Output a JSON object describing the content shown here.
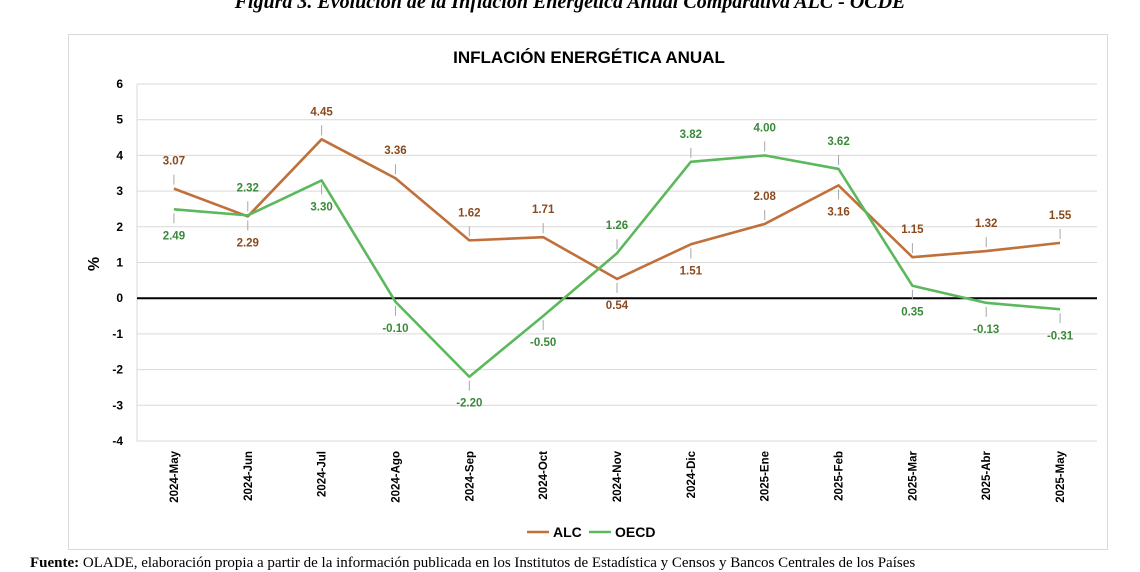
{
  "figure": {
    "title": "Figura 3. Evolución de la Inflación Energética Anual Comparativa ALC - OCDE",
    "source_label": "Fuente:",
    "source_text": "OLADE, elaboración propia a partir de la información publicada en los Institutos de Estadística y Censos y Bancos Centrales de los Países"
  },
  "chart_data": {
    "type": "line",
    "title": "INFLACIÓN ENERGÉTICA ANUAL",
    "xlabel": "",
    "ylabel": "%",
    "ylim": [
      -4,
      6
    ],
    "yticks": [
      "-4",
      "-3",
      "-2",
      "-1",
      "0",
      "1",
      "2",
      "3",
      "4",
      "5",
      "6"
    ],
    "grid": true,
    "legend": "bottom-center",
    "categories": [
      "2024-May",
      "2024-Jun",
      "2024-Jul",
      "2024-Ago",
      "2024-Sep",
      "2024-Oct",
      "2024-Nov",
      "2024-Dic",
      "2025-Ene",
      "2025-Feb",
      "2025-Mar",
      "2025-Abr",
      "2025-May"
    ],
    "series": [
      {
        "name": "ALC",
        "color": "#c0703a",
        "values": [
          3.07,
          2.29,
          4.45,
          3.36,
          1.62,
          1.71,
          0.54,
          1.51,
          2.08,
          3.16,
          1.15,
          1.32,
          1.55
        ],
        "labels": [
          "3.07",
          "2.29",
          "4.45",
          "3.36",
          "1.62",
          "1.71",
          "0.54",
          "1.51",
          "2.08",
          "3.16",
          "1.15",
          "1.32",
          "1.55"
        ]
      },
      {
        "name": "OECD",
        "color": "#5cb85c",
        "values": [
          2.49,
          2.32,
          3.3,
          -0.1,
          -2.2,
          -0.5,
          1.26,
          3.82,
          4.0,
          3.62,
          0.35,
          -0.13,
          -0.31
        ],
        "labels": [
          "2.49",
          "2.32",
          "3.30",
          "-0.10",
          "-2.20",
          "-0.50",
          "1.26",
          "3.82",
          "4.00",
          "3.62",
          "0.35",
          "-0.13",
          "-0.31"
        ]
      }
    ]
  },
  "colors": {
    "alc_label": "#8b4a1e",
    "oecd_label": "#3a8a3a",
    "grid": "#d9d9d9",
    "zero_line": "#000000"
  }
}
